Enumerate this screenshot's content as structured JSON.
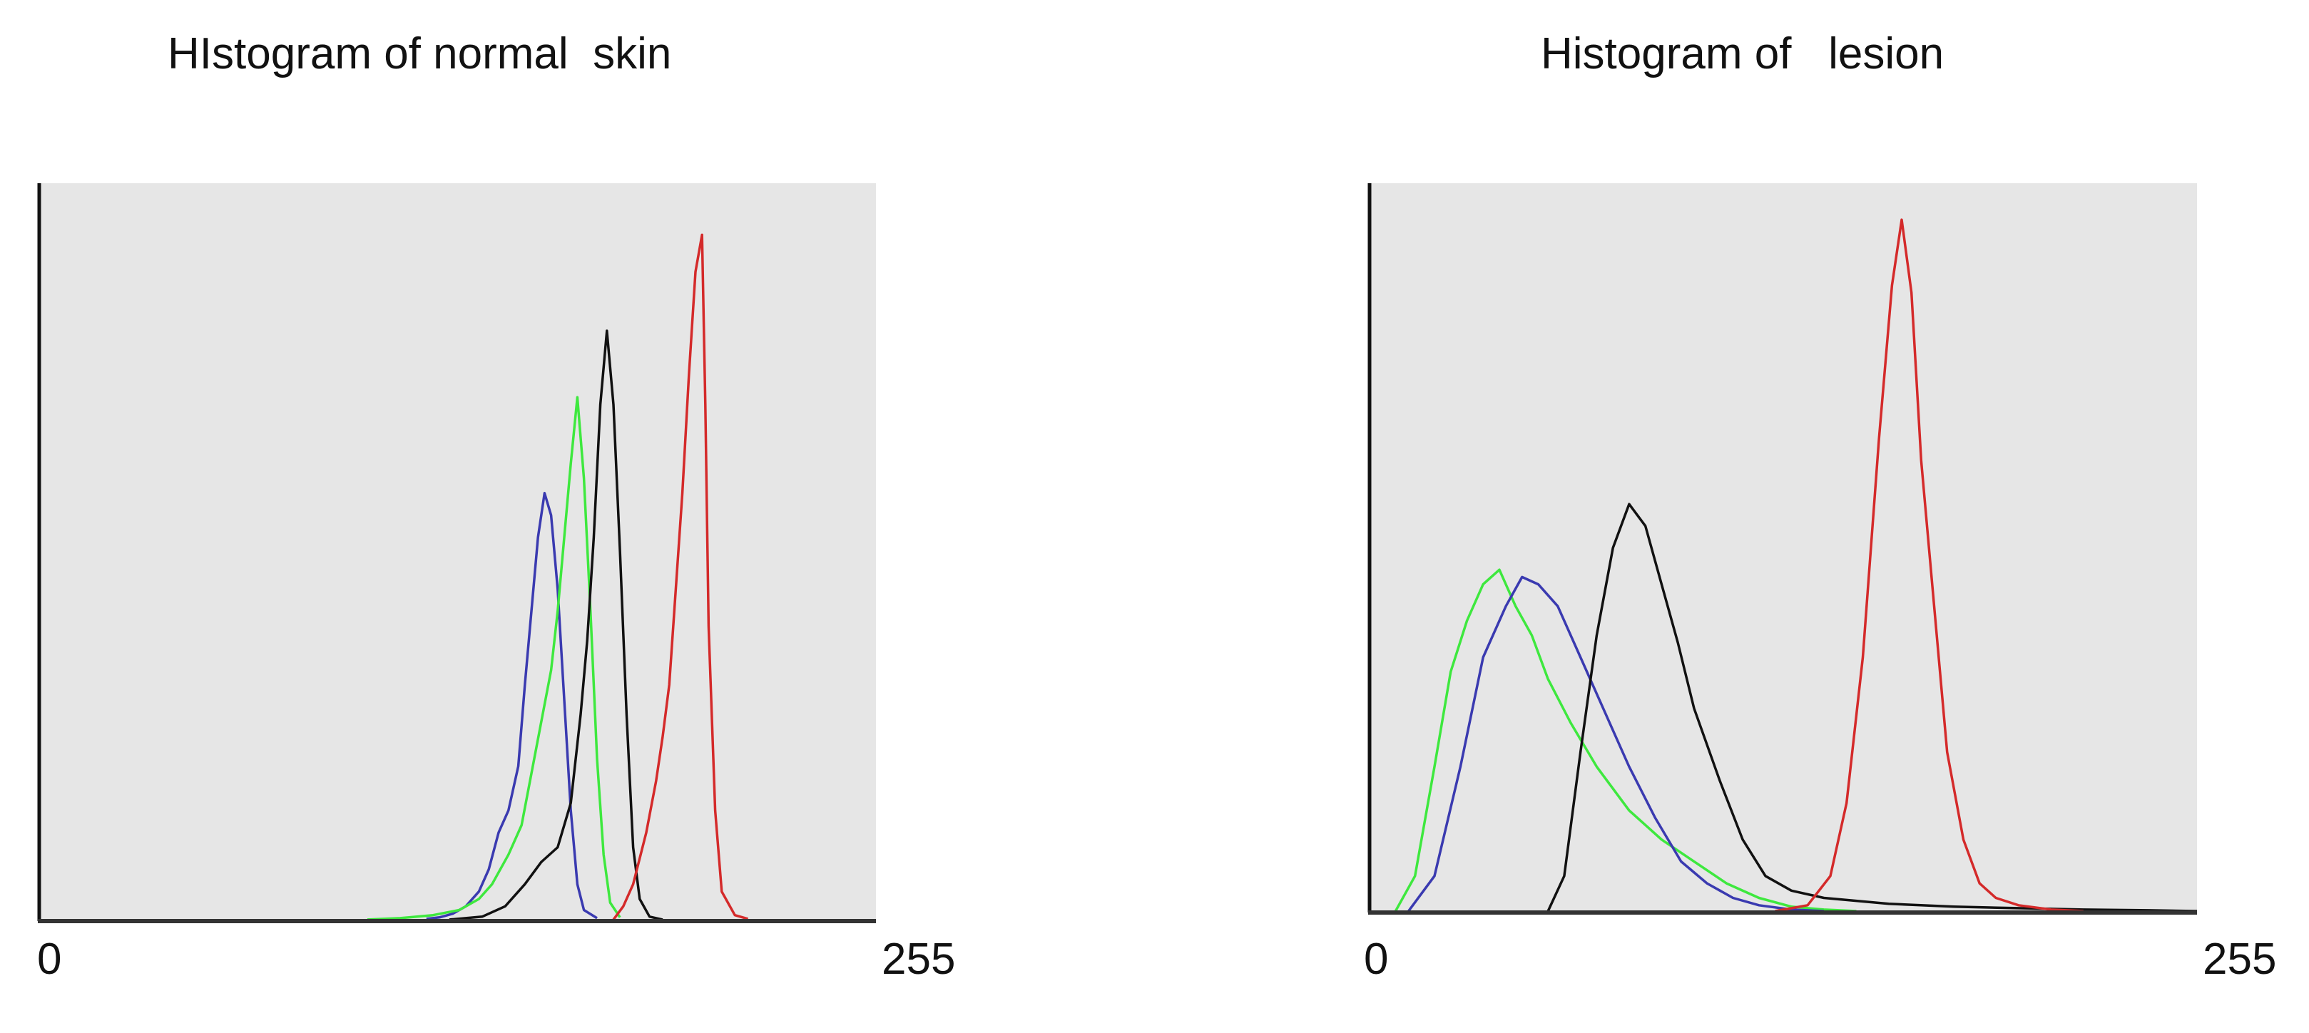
{
  "chart_data": [
    {
      "type": "line",
      "title": "HIstogram of normal  skin",
      "x_tick_labels": [
        "0",
        "255"
      ],
      "xlim": [
        0,
        255
      ],
      "ylim": [
        0,
        1
      ],
      "grid": false,
      "background": "#e6e6e6",
      "series": [
        {
          "color": "#3a3ab0",
          "points": [
            [
              118,
              0.003
            ],
            [
              122,
              0.005
            ],
            [
              126,
              0.01
            ],
            [
              130,
              0.02
            ],
            [
              134,
              0.04
            ],
            [
              137,
              0.07
            ],
            [
              140,
              0.12
            ],
            [
              143,
              0.15
            ],
            [
              146,
              0.21
            ],
            [
              148,
              0.32
            ],
            [
              150,
              0.42
            ],
            [
              152,
              0.52
            ],
            [
              154,
              0.58
            ],
            [
              156,
              0.55
            ],
            [
              158,
              0.45
            ],
            [
              160,
              0.3
            ],
            [
              162,
              0.15
            ],
            [
              164,
              0.05
            ],
            [
              166,
              0.015
            ],
            [
              170,
              0.004
            ]
          ]
        },
        {
          "color": "#3ee83e",
          "points": [
            [
              100,
              0.002
            ],
            [
              110,
              0.004
            ],
            [
              120,
              0.008
            ],
            [
              128,
              0.015
            ],
            [
              134,
              0.03
            ],
            [
              138,
              0.05
            ],
            [
              143,
              0.09
            ],
            [
              147,
              0.13
            ],
            [
              150,
              0.2
            ],
            [
              153,
              0.27
            ],
            [
              156,
              0.34
            ],
            [
              158,
              0.42
            ],
            [
              160,
              0.52
            ],
            [
              162,
              0.62
            ],
            [
              164,
              0.71
            ],
            [
              166,
              0.6
            ],
            [
              168,
              0.42
            ],
            [
              170,
              0.22
            ],
            [
              172,
              0.09
            ],
            [
              174,
              0.025
            ],
            [
              177,
              0.005
            ]
          ]
        },
        {
          "color": "#111111",
          "points": [
            [
              125,
              0.002
            ],
            [
              135,
              0.006
            ],
            [
              142,
              0.02
            ],
            [
              148,
              0.05
            ],
            [
              153,
              0.08
            ],
            [
              158,
              0.1
            ],
            [
              162,
              0.16
            ],
            [
              165,
              0.28
            ],
            [
              167,
              0.38
            ],
            [
              169,
              0.52
            ],
            [
              171,
              0.7
            ],
            [
              173,
              0.8
            ],
            [
              175,
              0.7
            ],
            [
              177,
              0.5
            ],
            [
              179,
              0.28
            ],
            [
              181,
              0.1
            ],
            [
              183,
              0.03
            ],
            [
              186,
              0.006
            ],
            [
              190,
              0.002
            ]
          ]
        },
        {
          "color": "#d42a2a",
          "points": [
            [
              175,
              0.002
            ],
            [
              178,
              0.02
            ],
            [
              181,
              0.05
            ],
            [
              185,
              0.12
            ],
            [
              188,
              0.19
            ],
            [
              190,
              0.25
            ],
            [
              192,
              0.32
            ],
            [
              194,
              0.45
            ],
            [
              196,
              0.58
            ],
            [
              198,
              0.74
            ],
            [
              200,
              0.88
            ],
            [
              202,
              0.93
            ],
            [
              203,
              0.7
            ],
            [
              204,
              0.4
            ],
            [
              206,
              0.15
            ],
            [
              208,
              0.04
            ],
            [
              212,
              0.008
            ],
            [
              216,
              0.003
            ]
          ]
        }
      ]
    },
    {
      "type": "line",
      "title": "Histogram of   lesion",
      "x_tick_labels": [
        "0",
        "255"
      ],
      "xlim": [
        0,
        255
      ],
      "ylim": [
        0,
        1
      ],
      "grid": false,
      "background": "#e6e6e6",
      "series": [
        {
          "color": "#3ee83e",
          "points": [
            [
              8,
              0.002
            ],
            [
              14,
              0.05
            ],
            [
              20,
              0.2
            ],
            [
              25,
              0.33
            ],
            [
              30,
              0.4
            ],
            [
              35,
              0.45
            ],
            [
              40,
              0.47
            ],
            [
              45,
              0.42
            ],
            [
              50,
              0.38
            ],
            [
              55,
              0.32
            ],
            [
              62,
              0.26
            ],
            [
              70,
              0.2
            ],
            [
              80,
              0.14
            ],
            [
              90,
              0.1
            ],
            [
              100,
              0.07
            ],
            [
              110,
              0.04
            ],
            [
              120,
              0.02
            ],
            [
              130,
              0.008
            ],
            [
              140,
              0.004
            ],
            [
              150,
              0.002
            ]
          ]
        },
        {
          "color": "#3a3ab0",
          "points": [
            [
              12,
              0.002
            ],
            [
              20,
              0.05
            ],
            [
              28,
              0.2
            ],
            [
              35,
              0.35
            ],
            [
              42,
              0.42
            ],
            [
              47,
              0.46
            ],
            [
              52,
              0.45
            ],
            [
              58,
              0.42
            ],
            [
              65,
              0.35
            ],
            [
              72,
              0.28
            ],
            [
              80,
              0.2
            ],
            [
              88,
              0.13
            ],
            [
              96,
              0.07
            ],
            [
              104,
              0.04
            ],
            [
              112,
              0.02
            ],
            [
              120,
              0.01
            ],
            [
              130,
              0.004
            ],
            [
              140,
              0.002
            ]
          ]
        },
        {
          "color": "#111111",
          "points": [
            [
              55,
              0.002
            ],
            [
              60,
              0.05
            ],
            [
              65,
              0.22
            ],
            [
              70,
              0.38
            ],
            [
              75,
              0.5
            ],
            [
              80,
              0.56
            ],
            [
              85,
              0.53
            ],
            [
              90,
              0.45
            ],
            [
              95,
              0.37
            ],
            [
              100,
              0.28
            ],
            [
              108,
              0.18
            ],
            [
              115,
              0.1
            ],
            [
              122,
              0.05
            ],
            [
              130,
              0.03
            ],
            [
              140,
              0.02
            ],
            [
              160,
              0.012
            ],
            [
              180,
              0.008
            ],
            [
              200,
              0.006
            ],
            [
              220,
              0.004
            ],
            [
              240,
              0.003
            ],
            [
              255,
              0.002
            ]
          ]
        },
        {
          "color": "#d42a2a",
          "points": [
            [
              125,
              0.002
            ],
            [
              135,
              0.01
            ],
            [
              142,
              0.05
            ],
            [
              147,
              0.15
            ],
            [
              152,
              0.35
            ],
            [
              157,
              0.65
            ],
            [
              161,
              0.86
            ],
            [
              164,
              0.95
            ],
            [
              167,
              0.85
            ],
            [
              170,
              0.62
            ],
            [
              174,
              0.42
            ],
            [
              178,
              0.22
            ],
            [
              183,
              0.1
            ],
            [
              188,
              0.04
            ],
            [
              193,
              0.02
            ],
            [
              200,
              0.01
            ],
            [
              210,
              0.004
            ],
            [
              220,
              0.002
            ]
          ]
        }
      ]
    }
  ]
}
